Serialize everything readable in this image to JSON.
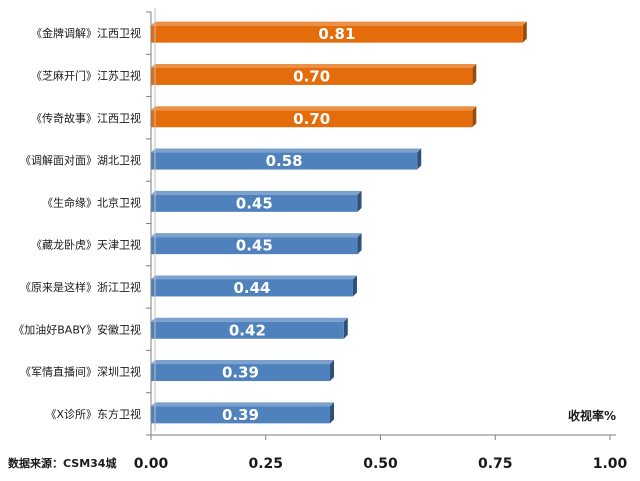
{
  "chart_data": {
    "type": "bar",
    "orientation": "horizontal",
    "categories": [
      "《金牌调解》江西卫视",
      "《芝麻开门》江苏卫视",
      "《传奇故事》江西卫视",
      "《调解面对面》湖北卫视",
      "《生命缘》北京卫视",
      "《藏龙卧虎》天津卫视",
      "《原来是这样》浙江卫视",
      "《加油好BABY》安徽卫视",
      "《军情直播间》深圳卫视",
      "《X诊所》东方卫视"
    ],
    "values": [
      0.81,
      0.7,
      0.7,
      0.58,
      0.45,
      0.45,
      0.44,
      0.42,
      0.39,
      0.39
    ],
    "data_labels": [
      "0.81",
      "0.70",
      "0.70",
      "0.58",
      "0.45",
      "0.45",
      "0.44",
      "0.42",
      "0.39",
      "0.39"
    ],
    "bar_colors": [
      "#E46C0A",
      "#E46C0A",
      "#E46C0A",
      "#4F81BD",
      "#4F81BD",
      "#4F81BD",
      "#4F81BD",
      "#4F81BD",
      "#4F81BD",
      "#4F81BD"
    ],
    "bar_side_colors": [
      "#9C4A07",
      "#9C4A07",
      "#9C4A07",
      "#2E5178",
      "#2E5178",
      "#2E5178",
      "#2E5178",
      "#2E5178",
      "#2E5178",
      "#2E5178"
    ],
    "xlim": [
      0,
      1
    ],
    "x_ticks": [
      "0.00",
      "0.25",
      "0.50",
      "0.75",
      "1.00"
    ],
    "x_tick_values": [
      0,
      0.25,
      0.5,
      0.75,
      1
    ],
    "axis_title": "收视率%",
    "source_note": "数据来源：CSM34城",
    "grid": false,
    "legend": "none"
  }
}
